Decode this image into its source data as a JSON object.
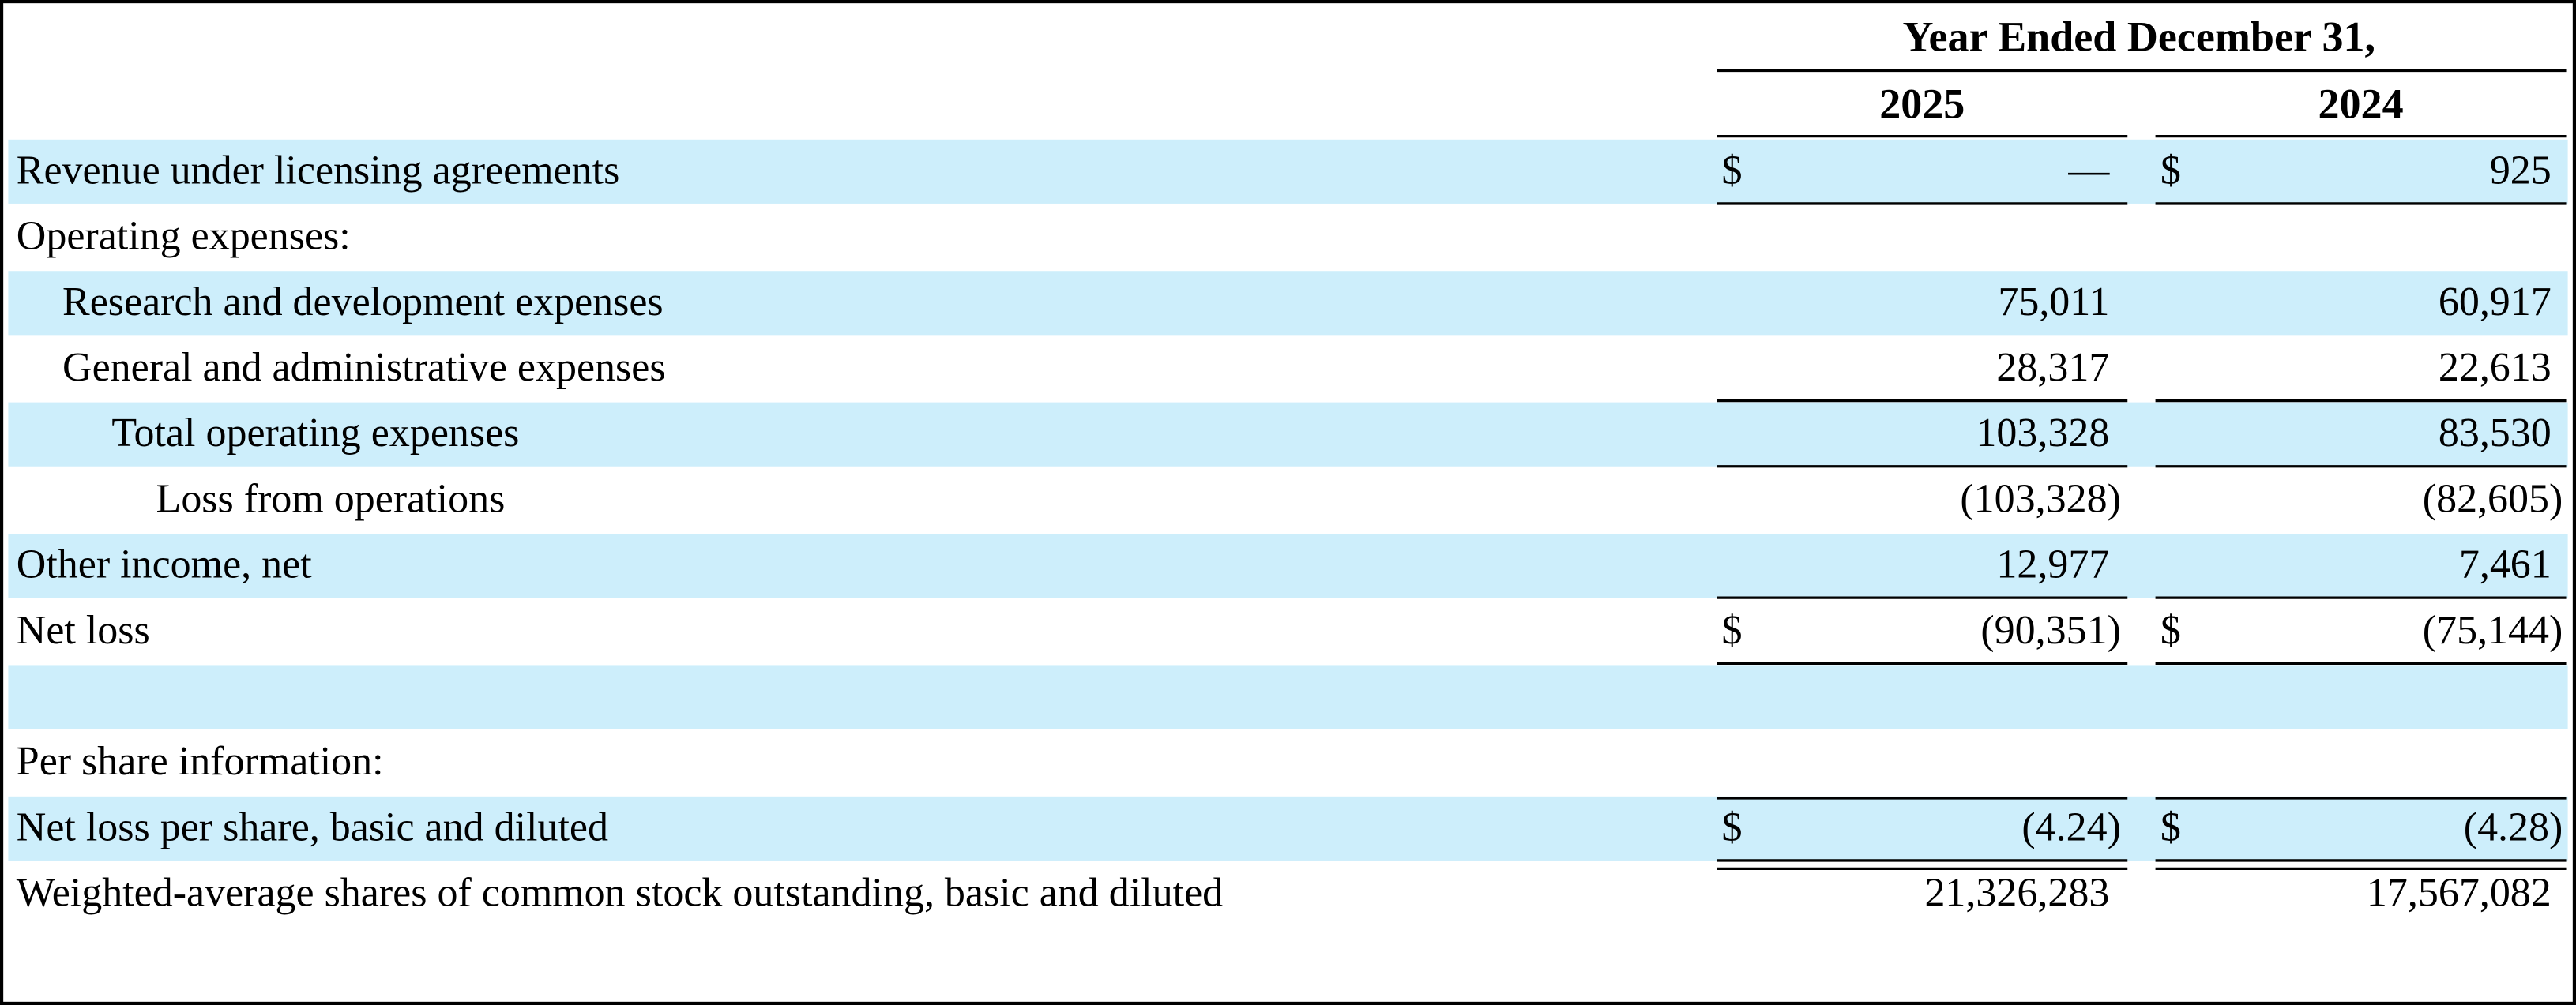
{
  "header": {
    "period": "Year Ended December 31,",
    "columns": [
      "2025",
      "2024"
    ]
  },
  "table": {
    "rows": [
      {
        "label": "Revenue under licensing agreements",
        "cells": [
          {
            "currency": "$",
            "value": "—"
          },
          {
            "currency": "$",
            "value": "925"
          }
        ]
      },
      {
        "label": "Operating expenses:"
      },
      {
        "label": "Research and development expenses",
        "cells": [
          {
            "value": "75,011"
          },
          {
            "value": "60,917"
          }
        ]
      },
      {
        "label": "General and administrative expenses",
        "cells": [
          {
            "value": "28,317"
          },
          {
            "value": "22,613"
          }
        ]
      },
      {
        "label": "Total operating expenses",
        "cells": [
          {
            "value": "103,328"
          },
          {
            "value": "83,530"
          }
        ]
      },
      {
        "label": "Loss from operations",
        "cells": [
          {
            "value": "(103,328)"
          },
          {
            "value": "(82,605)"
          }
        ]
      },
      {
        "label": "Other income, net",
        "cells": [
          {
            "value": "12,977"
          },
          {
            "value": "7,461"
          }
        ]
      },
      {
        "label": "Net loss",
        "cells": [
          {
            "currency": "$",
            "value": "(90,351)"
          },
          {
            "currency": "$",
            "value": "(75,144)"
          }
        ]
      },
      {
        "label": "Per share information:"
      },
      {
        "label": "Net loss per share, basic and diluted",
        "cells": [
          {
            "currency": "$",
            "value": "(4.24)"
          },
          {
            "currency": "$",
            "value": "(4.28)"
          }
        ]
      },
      {
        "label": "Weighted-average shares of  common stock outstanding, basic and diluted",
        "cells": [
          {
            "value": "21,326,283"
          },
          {
            "value": "17,567,082"
          }
        ]
      }
    ]
  }
}
